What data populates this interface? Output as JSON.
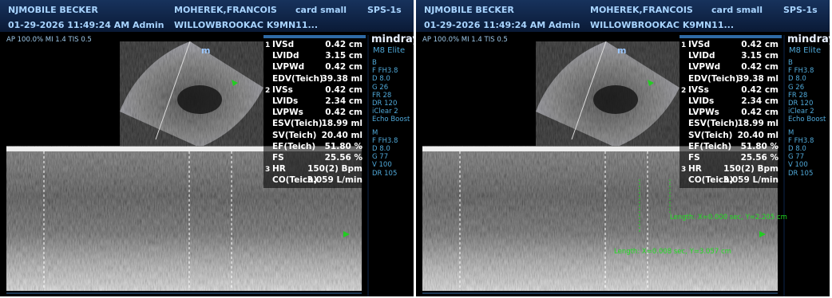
{
  "panels": [
    {
      "header": {
        "site": "NJMOBILE BECKER",
        "patient": "MOHEREK,FRANCOIS",
        "preset": "card small",
        "probe": "SPS-1s",
        "datetime": "01-29-2026 11:49:24 AM Admin",
        "institution": "WILLOWBROOKAC K9MN11..."
      },
      "acoustic": "AP 100.0%  MI 1.4  TIS 0.5",
      "logo": "mindray",
      "model": "M8 Elite",
      "measurements": [
        {
          "index": "1",
          "name": "IVSd",
          "value": "0.42 cm"
        },
        {
          "name": "LVIDd",
          "value": "3.15 cm"
        },
        {
          "name": "LVPWd",
          "value": "0.42 cm"
        },
        {
          "name": "EDV(Teich)",
          "value": "39.38 ml"
        },
        {
          "index": "2",
          "name": "IVSs",
          "value": "0.42 cm"
        },
        {
          "name": "LVIDs",
          "value": "2.34 cm"
        },
        {
          "name": "LVPWs",
          "value": "0.42 cm"
        },
        {
          "name": "ESV(Teich)",
          "value": "18.99 ml"
        },
        {
          "name": "SV(Teich)",
          "value": "20.40 ml"
        },
        {
          "name": "EF(Teich)",
          "value": "51.80 %"
        },
        {
          "name": "FS",
          "value": "25.56 %"
        },
        {
          "index": "3",
          "name": "HR",
          "value": "150(2) Bpm"
        },
        {
          "name": "CO(Teich)",
          "value": "3.059 L/min"
        }
      ],
      "params": [
        "B",
        "F FH3.8",
        "D 8.0",
        "G 26",
        "FR 28",
        "DR 120",
        "iClear 2",
        "Echo Boost",
        "M",
        "F FH3.8",
        "D 8.0",
        "G 77",
        "V 100",
        "DR 105"
      ],
      "annotations": []
    },
    {
      "header": {
        "site": "NJMOBILE BECKER",
        "patient": "MOHEREK,FRANCOIS",
        "preset": "card small",
        "probe": "SPS-1s",
        "datetime": "01-29-2026 11:49:24 AM Admin",
        "institution": "WILLOWBROOKAC K9MN11..."
      },
      "acoustic": "AP 100.0%  MI 1.4  TIS 0.5",
      "logo": "mindray",
      "model": "M8 Elite",
      "measurements": [
        {
          "index": "1",
          "name": "IVSd",
          "value": "0.42 cm"
        },
        {
          "name": "LVIDd",
          "value": "3.15 cm"
        },
        {
          "name": "LVPWd",
          "value": "0.42 cm"
        },
        {
          "name": "EDV(Teich)",
          "value": "39.38 ml"
        },
        {
          "index": "2",
          "name": "IVSs",
          "value": "0.42 cm"
        },
        {
          "name": "LVIDs",
          "value": "2.34 cm"
        },
        {
          "name": "LVPWs",
          "value": "0.42 cm"
        },
        {
          "name": "ESV(Teich)",
          "value": "18.99 ml"
        },
        {
          "name": "SV(Teich)",
          "value": "20.40 ml"
        },
        {
          "name": "EF(Teich)",
          "value": "51.80 %"
        },
        {
          "name": "FS",
          "value": "25.56 %"
        },
        {
          "index": "3",
          "name": "HR",
          "value": "150(2) Bpm"
        },
        {
          "name": "CO(Teich)",
          "value": "3.059 L/min"
        }
      ],
      "params": [
        "B",
        "F FH3.8",
        "D 8.0",
        "G 26",
        "FR 28",
        "DR 120",
        "iClear 2",
        "Echo Boost",
        "M",
        "F FH3.8",
        "D 8.0",
        "G 77",
        "V 100",
        "DR 105"
      ],
      "annotations": [
        "Length: X=0.000 sec, Y=2.205 cm",
        "Length: X=0.008 sec, Y=3.057 cm"
      ]
    }
  ]
}
